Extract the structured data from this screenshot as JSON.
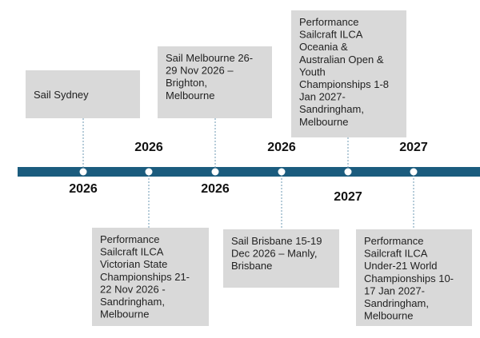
{
  "events": [
    {
      "year": "2026",
      "lines": [
        "Sail Sydney"
      ]
    },
    {
      "year": "2026",
      "lines": [
        "Performance",
        "Sailcraft ILCA",
        "Victorian State",
        "Championships 21-",
        "22 Nov 2026 -",
        "Sandringham,",
        "Melbourne"
      ]
    },
    {
      "year": "2026",
      "lines": [
        "Sail Melbourne 26-",
        "29 Nov 2026 –",
        "Brighton,",
        "Melbourne"
      ]
    },
    {
      "year": "2026",
      "lines": [
        "Sail Brisbane 15-19",
        "Dec 2026 – Manly,",
        "Brisbane"
      ]
    },
    {
      "year": "2027",
      "lines": [
        "Performance",
        "Sailcraft ILCA",
        "Oceania &",
        "Australian Open &",
        "Youth",
        "Championships 1-8",
        "Jan 2027-",
        "Sandringham,",
        "Melbourne"
      ]
    },
    {
      "year": "2027",
      "lines": [
        "Performance",
        "Sailcraft ILCA",
        "Under-21 World",
        "Championships 10-",
        "17 Jan 2027-",
        "Sandringham,",
        "Melbourne"
      ]
    }
  ]
}
